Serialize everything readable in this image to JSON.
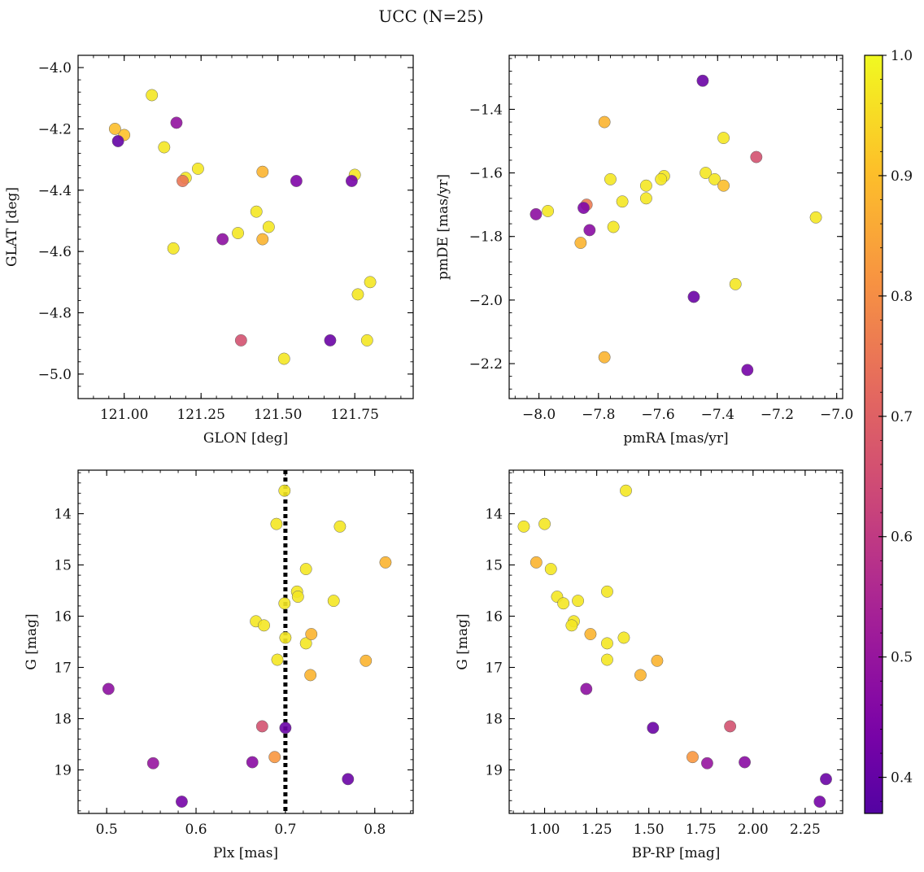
{
  "figure": {
    "title": "UCC (N=25)"
  },
  "colorbar": {
    "colormap": "plasma",
    "range": [
      0.37,
      1.0
    ],
    "ticks": [
      0.4,
      0.5,
      0.6,
      0.7,
      0.8,
      0.9,
      1.0
    ]
  },
  "chart_data": [
    {
      "type": "scatter",
      "id": "sky",
      "title": "",
      "xlabel": "GLON [deg]",
      "ylabel": "GLAT [deg]",
      "xlim": [
        120.85,
        121.94
      ],
      "ylim": [
        -5.08,
        -3.96
      ],
      "y_inverted": false,
      "xticks": [
        121.0,
        121.25,
        121.5,
        121.75
      ],
      "xtick_labels": [
        "121.00",
        "121.25",
        "121.50",
        "121.75"
      ],
      "yticks": [
        -5.0,
        -4.8,
        -4.6,
        -4.4,
        -4.2,
        -4.0
      ],
      "ytick_labels": [
        "−5.0",
        "−4.8",
        "−4.6",
        "−4.4",
        "−4.2",
        "−4.0"
      ],
      "vline": null,
      "points": [
        {
          "x": 121.09,
          "y": -4.09,
          "c": 0.97
        },
        {
          "x": 120.97,
          "y": -4.2,
          "c": 0.9
        },
        {
          "x": 121.0,
          "y": -4.22,
          "c": 0.91
        },
        {
          "x": 120.98,
          "y": -4.24,
          "c": 0.4
        },
        {
          "x": 121.17,
          "y": -4.18,
          "c": 0.49
        },
        {
          "x": 121.13,
          "y": -4.26,
          "c": 0.97
        },
        {
          "x": 121.24,
          "y": -4.33,
          "c": 0.97
        },
        {
          "x": 121.2,
          "y": -4.36,
          "c": 0.97
        },
        {
          "x": 121.19,
          "y": -4.37,
          "c": 0.75
        },
        {
          "x": 121.45,
          "y": -4.34,
          "c": 0.88
        },
        {
          "x": 121.56,
          "y": -4.37,
          "c": 0.45
        },
        {
          "x": 121.74,
          "y": -4.37,
          "c": 0.43
        },
        {
          "x": 121.75,
          "y": -4.35,
          "c": 0.97
        },
        {
          "x": 121.43,
          "y": -4.47,
          "c": 0.97
        },
        {
          "x": 121.47,
          "y": -4.52,
          "c": 0.97
        },
        {
          "x": 121.37,
          "y": -4.54,
          "c": 0.97
        },
        {
          "x": 121.45,
          "y": -4.56,
          "c": 0.88
        },
        {
          "x": 121.32,
          "y": -4.56,
          "c": 0.48
        },
        {
          "x": 121.16,
          "y": -4.59,
          "c": 0.97
        },
        {
          "x": 121.8,
          "y": -4.7,
          "c": 0.97
        },
        {
          "x": 121.76,
          "y": -4.74,
          "c": 0.97
        },
        {
          "x": 121.38,
          "y": -4.89,
          "c": 0.66
        },
        {
          "x": 121.67,
          "y": -4.89,
          "c": 0.41
        },
        {
          "x": 121.79,
          "y": -4.89,
          "c": 0.97
        },
        {
          "x": 121.52,
          "y": -4.95,
          "c": 0.97
        }
      ]
    },
    {
      "type": "scatter",
      "id": "pm",
      "title": "",
      "xlabel": "pmRA [mas/yr]",
      "ylabel": "pmDE [mas/yr]",
      "xlim": [
        -8.1,
        -6.98
      ],
      "ylim": [
        -2.31,
        -1.23
      ],
      "y_inverted": false,
      "xticks": [
        -8.0,
        -7.8,
        -7.6,
        -7.4,
        -7.2,
        -7.0
      ],
      "xtick_labels": [
        "−8.0",
        "−7.8",
        "−7.6",
        "−7.4",
        "−7.2",
        "−7.0"
      ],
      "yticks": [
        -2.2,
        -2.0,
        -1.8,
        -1.6,
        -1.4
      ],
      "ytick_labels": [
        "−2.2",
        "−2.0",
        "−1.8",
        "−1.6",
        "−1.4"
      ],
      "vline": null,
      "points": [
        {
          "x": -7.45,
          "y": -1.31,
          "c": 0.41
        },
        {
          "x": -7.78,
          "y": -1.44,
          "c": 0.88
        },
        {
          "x": -7.38,
          "y": -1.49,
          "c": 0.97
        },
        {
          "x": -7.27,
          "y": -1.55,
          "c": 0.66
        },
        {
          "x": -7.44,
          "y": -1.6,
          "c": 0.97
        },
        {
          "x": -7.58,
          "y": -1.61,
          "c": 0.97
        },
        {
          "x": -7.59,
          "y": -1.62,
          "c": 0.97
        },
        {
          "x": -7.76,
          "y": -1.62,
          "c": 0.97
        },
        {
          "x": -7.41,
          "y": -1.62,
          "c": 0.97
        },
        {
          "x": -7.38,
          "y": -1.64,
          "c": 0.9
        },
        {
          "x": -7.64,
          "y": -1.64,
          "c": 0.97
        },
        {
          "x": -7.64,
          "y": -1.68,
          "c": 0.97
        },
        {
          "x": -7.72,
          "y": -1.69,
          "c": 0.97
        },
        {
          "x": -7.84,
          "y": -1.7,
          "c": 0.76
        },
        {
          "x": -7.85,
          "y": -1.71,
          "c": 0.45
        },
        {
          "x": -7.97,
          "y": -1.72,
          "c": 0.97
        },
        {
          "x": -8.01,
          "y": -1.73,
          "c": 0.48
        },
        {
          "x": -7.07,
          "y": -1.74,
          "c": 0.97
        },
        {
          "x": -7.75,
          "y": -1.77,
          "c": 0.97
        },
        {
          "x": -7.83,
          "y": -1.78,
          "c": 0.47
        },
        {
          "x": -7.86,
          "y": -1.82,
          "c": 0.88
        },
        {
          "x": -7.34,
          "y": -1.95,
          "c": 0.97
        },
        {
          "x": -7.48,
          "y": -1.99,
          "c": 0.41
        },
        {
          "x": -7.78,
          "y": -2.18,
          "c": 0.88
        },
        {
          "x": -7.3,
          "y": -2.22,
          "c": 0.43
        }
      ]
    },
    {
      "type": "scatter",
      "id": "plx",
      "title": "",
      "xlabel": "Plx [mas]",
      "ylabel": "G [mag]",
      "xlim": [
        0.468,
        0.843
      ],
      "ylim": [
        19.85,
        13.15
      ],
      "y_inverted": true,
      "xticks": [
        0.5,
        0.6,
        0.7,
        0.8
      ],
      "xtick_labels": [
        "0.5",
        "0.6",
        "0.7",
        "0.8"
      ],
      "yticks": [
        14,
        15,
        16,
        17,
        18,
        19
      ],
      "ytick_labels": [
        "14",
        "15",
        "16",
        "17",
        "18",
        "19"
      ],
      "vline": 0.7,
      "points": [
        {
          "x": 0.699,
          "y": 13.55,
          "c": 0.97
        },
        {
          "x": 0.69,
          "y": 14.2,
          "c": 0.97
        },
        {
          "x": 0.761,
          "y": 14.25,
          "c": 0.97
        },
        {
          "x": 0.812,
          "y": 14.95,
          "c": 0.88
        },
        {
          "x": 0.723,
          "y": 15.08,
          "c": 0.97
        },
        {
          "x": 0.713,
          "y": 15.52,
          "c": 0.97
        },
        {
          "x": 0.714,
          "y": 15.62,
          "c": 0.97
        },
        {
          "x": 0.754,
          "y": 15.7,
          "c": 0.97
        },
        {
          "x": 0.699,
          "y": 15.75,
          "c": 0.97
        },
        {
          "x": 0.667,
          "y": 16.1,
          "c": 0.97
        },
        {
          "x": 0.676,
          "y": 16.18,
          "c": 0.97
        },
        {
          "x": 0.729,
          "y": 16.35,
          "c": 0.88
        },
        {
          "x": 0.7,
          "y": 16.42,
          "c": 0.97
        },
        {
          "x": 0.723,
          "y": 16.53,
          "c": 0.97
        },
        {
          "x": 0.691,
          "y": 16.85,
          "c": 0.97
        },
        {
          "x": 0.79,
          "y": 16.87,
          "c": 0.88
        },
        {
          "x": 0.728,
          "y": 17.15,
          "c": 0.88
        },
        {
          "x": 0.502,
          "y": 17.42,
          "c": 0.48
        },
        {
          "x": 0.674,
          "y": 18.15,
          "c": 0.66
        },
        {
          "x": 0.7,
          "y": 18.18,
          "c": 0.41
        },
        {
          "x": 0.688,
          "y": 18.75,
          "c": 0.82
        },
        {
          "x": 0.552,
          "y": 18.87,
          "c": 0.5
        },
        {
          "x": 0.663,
          "y": 18.85,
          "c": 0.47
        },
        {
          "x": 0.77,
          "y": 19.18,
          "c": 0.41
        },
        {
          "x": 0.584,
          "y": 19.62,
          "c": 0.43
        }
      ]
    },
    {
      "type": "scatter",
      "id": "cmd",
      "title": "",
      "xlabel": "BP-RP [mag]",
      "ylabel": "G [mag]",
      "xlim": [
        0.83,
        2.43
      ],
      "ylim": [
        19.85,
        13.15
      ],
      "y_inverted": true,
      "xticks": [
        1.0,
        1.25,
        1.5,
        1.75,
        2.0,
        2.25
      ],
      "xtick_labels": [
        "1.00",
        "1.25",
        "1.50",
        "1.75",
        "2.00",
        "2.25"
      ],
      "yticks": [
        14,
        15,
        16,
        17,
        18,
        19
      ],
      "ytick_labels": [
        "14",
        "15",
        "16",
        "17",
        "18",
        "19"
      ],
      "vline": null,
      "points": [
        {
          "x": 1.39,
          "y": 13.55,
          "c": 0.97
        },
        {
          "x": 0.9,
          "y": 14.25,
          "c": 0.97
        },
        {
          "x": 1.0,
          "y": 14.2,
          "c": 0.97
        },
        {
          "x": 0.96,
          "y": 14.95,
          "c": 0.88
        },
        {
          "x": 1.03,
          "y": 15.08,
          "c": 0.97
        },
        {
          "x": 1.3,
          "y": 15.52,
          "c": 0.97
        },
        {
          "x": 1.06,
          "y": 15.62,
          "c": 0.97
        },
        {
          "x": 1.16,
          "y": 15.7,
          "c": 0.97
        },
        {
          "x": 1.09,
          "y": 15.75,
          "c": 0.97
        },
        {
          "x": 1.14,
          "y": 16.1,
          "c": 0.97
        },
        {
          "x": 1.13,
          "y": 16.18,
          "c": 0.97
        },
        {
          "x": 1.22,
          "y": 16.35,
          "c": 0.88
        },
        {
          "x": 1.38,
          "y": 16.42,
          "c": 0.97
        },
        {
          "x": 1.3,
          "y": 16.53,
          "c": 0.97
        },
        {
          "x": 1.3,
          "y": 16.85,
          "c": 0.97
        },
        {
          "x": 1.54,
          "y": 16.87,
          "c": 0.88
        },
        {
          "x": 1.46,
          "y": 17.15,
          "c": 0.88
        },
        {
          "x": 1.2,
          "y": 17.42,
          "c": 0.48
        },
        {
          "x": 1.89,
          "y": 18.15,
          "c": 0.66
        },
        {
          "x": 1.52,
          "y": 18.18,
          "c": 0.41
        },
        {
          "x": 1.71,
          "y": 18.75,
          "c": 0.82
        },
        {
          "x": 1.78,
          "y": 18.87,
          "c": 0.5
        },
        {
          "x": 1.96,
          "y": 18.85,
          "c": 0.47
        },
        {
          "x": 2.35,
          "y": 19.18,
          "c": 0.41
        },
        {
          "x": 2.32,
          "y": 19.62,
          "c": 0.43
        }
      ]
    }
  ]
}
